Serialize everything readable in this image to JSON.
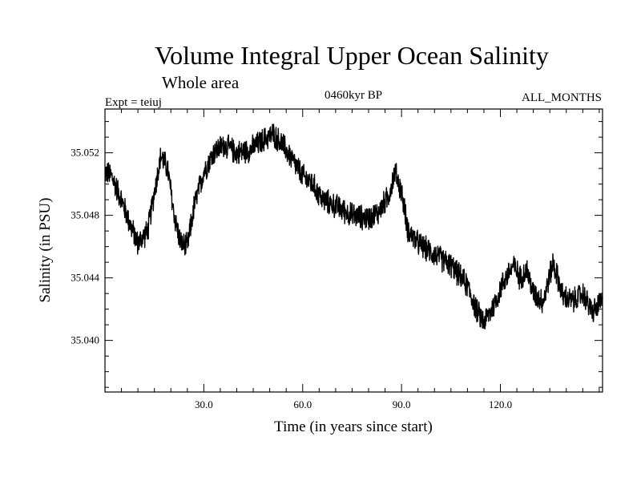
{
  "chart_data": {
    "type": "line",
    "title": "Volume Integral Upper Ocean Salinity",
    "subtitle": "Whole area",
    "annotation_left": "Expt = teiuj",
    "annotation_center": "0460kyr BP",
    "annotation_right": "ALL_MONTHS",
    "xlabel": "Time (in years since start)",
    "ylabel": "Salinity (in PSU)",
    "xlim": [
      0,
      151
    ],
    "ylim": [
      35.0367,
      35.0548
    ],
    "xticks": [
      30,
      60,
      90,
      120
    ],
    "xtick_labels": [
      "30.0",
      "60.0",
      "90.0",
      "120.0"
    ],
    "yticks": [
      35.04,
      35.044,
      35.048,
      35.052
    ],
    "ytick_labels": [
      "35.040",
      "35.044",
      "35.048",
      "35.052"
    ],
    "series": [
      {
        "name": "salinity",
        "color": "#000000",
        "trend_x": [
          0,
          2,
          5,
          8,
          10,
          13,
          15,
          17,
          19,
          21,
          23,
          25,
          27,
          30,
          33,
          36,
          40,
          44,
          48,
          51,
          54,
          57,
          60,
          63,
          66,
          70,
          75,
          80,
          83,
          86,
          88,
          90,
          92,
          95,
          100,
          105,
          110,
          113,
          115,
          118,
          121,
          124,
          126,
          128,
          130,
          133,
          136,
          139,
          142,
          145,
          148,
          151
        ],
        "trend_y": [
          35.0508,
          35.0505,
          35.049,
          35.0472,
          35.0462,
          35.047,
          35.0495,
          35.0518,
          35.051,
          35.048,
          35.0462,
          35.046,
          35.0485,
          35.0508,
          35.052,
          35.0525,
          35.052,
          35.0522,
          35.0528,
          35.0532,
          35.0525,
          35.0515,
          35.0505,
          35.05,
          35.049,
          35.0486,
          35.048,
          35.0478,
          35.0482,
          35.0492,
          35.0508,
          35.0495,
          35.047,
          35.0462,
          35.0455,
          35.0448,
          35.0435,
          35.0418,
          35.0412,
          35.0422,
          35.0438,
          35.0448,
          35.044,
          35.0445,
          35.043,
          35.0425,
          35.045,
          35.0428,
          35.0425,
          35.043,
          35.0418,
          35.0425
        ],
        "noise_amplitude_psu": 0.0009,
        "samples_per_year": 12
      }
    ]
  }
}
